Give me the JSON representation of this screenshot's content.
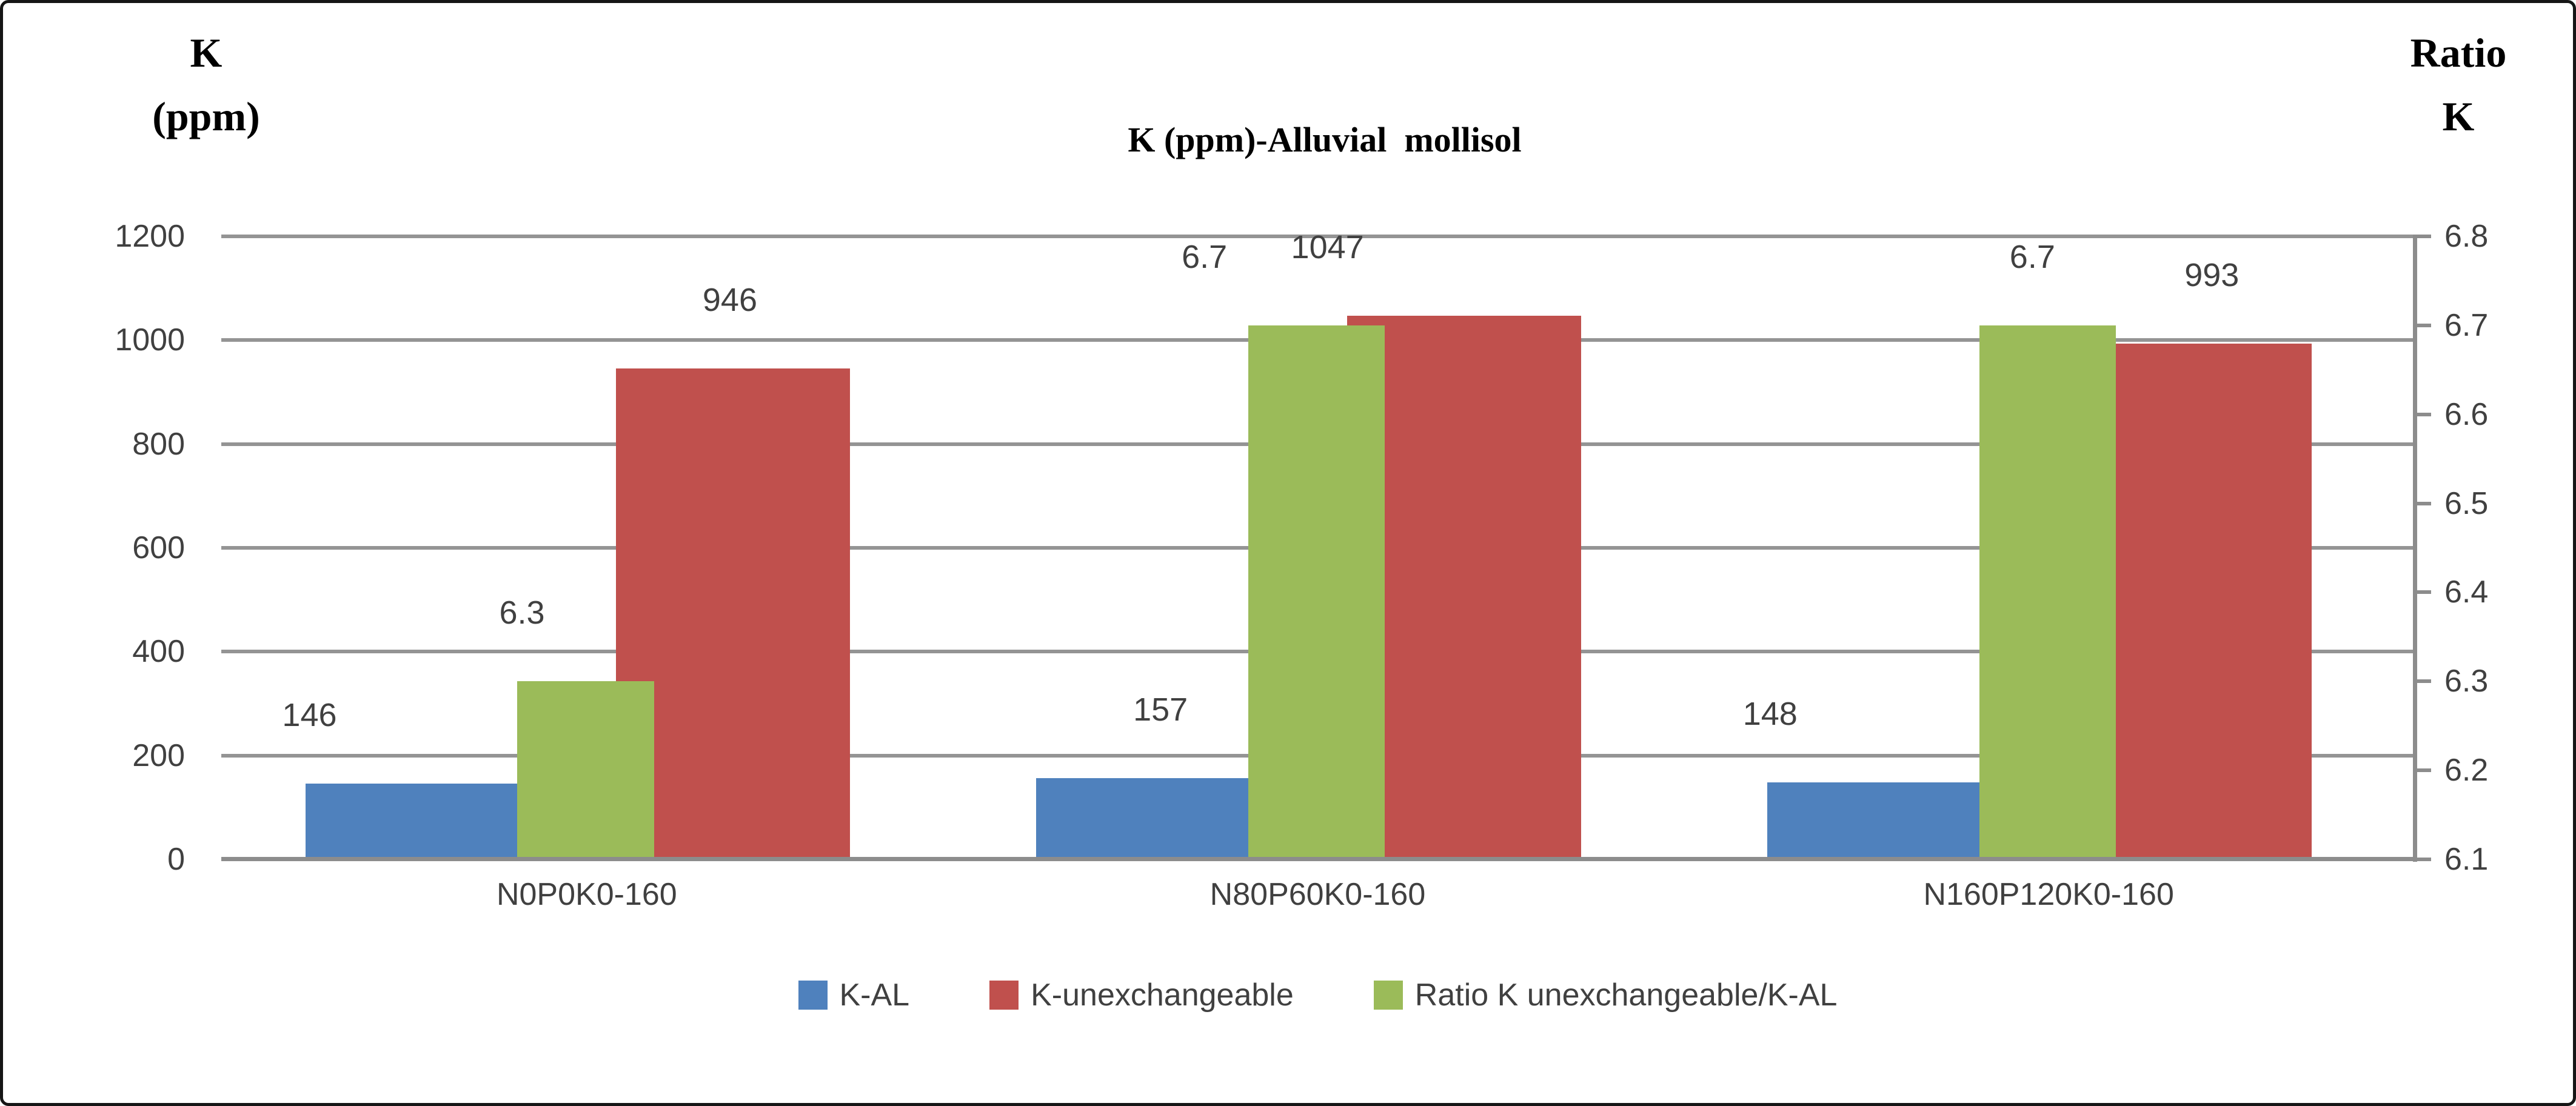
{
  "figure": {
    "left_axis_title_line1": "K",
    "left_axis_title_line2": "(ppm)",
    "right_axis_title_line1": "Ratio",
    "right_axis_title_line2": "K",
    "background": "#ffffff",
    "border_color": "#161616"
  },
  "chart_data": {
    "type": "bar",
    "title": "K (ppm)-Alluvial  mollisol",
    "categories": [
      "N0P0K0-160",
      "N80P60K0-160",
      "N160P120K0-160"
    ],
    "series": [
      {
        "name": "K-AL",
        "axis": "primary",
        "color": "#4F81BD",
        "values": [
          146,
          157,
          148
        ],
        "data_labels": [
          "146",
          "157",
          "148"
        ]
      },
      {
        "name": "K-unexchangeable",
        "axis": "primary",
        "color": "#C0504D",
        "values": [
          946,
          1047,
          993
        ],
        "data_labels": [
          "946",
          "1047",
          "993"
        ]
      },
      {
        "name": "Ratio K unexchangeable/K-AL",
        "axis": "secondary",
        "color": "#9BBB59",
        "values": [
          6.3,
          6.7,
          6.7
        ],
        "data_labels": [
          "6.3",
          "6.7",
          "6.7"
        ]
      }
    ],
    "primary_axis": {
      "min": 0,
      "max": 1200,
      "tick_labels": [
        "0",
        "200",
        "400",
        "600",
        "800",
        "1000",
        "1200"
      ],
      "ticks": [
        0,
        200,
        400,
        600,
        800,
        1000,
        1200
      ]
    },
    "secondary_axis": {
      "min": 6.1,
      "max": 6.8,
      "tick_labels": [
        "6.1",
        "6.2",
        "6.3",
        "6.4",
        "6.5",
        "6.6",
        "6.7",
        "6.8"
      ],
      "ticks": [
        6.1,
        6.2,
        6.3,
        6.4,
        6.5,
        6.6,
        6.7,
        6.8
      ]
    },
    "legend": {
      "position": "bottom",
      "entries": [
        "K-AL",
        "K-unexchangeable",
        "Ratio K unexchangeable/K-AL"
      ],
      "entry_colors": [
        "#4F81BD",
        "#C0504D",
        "#9BBB59"
      ]
    },
    "grid": true,
    "gridline_color": "#949494",
    "axis_line_color": "#8c8c8c",
    "text_color": "#404040"
  }
}
